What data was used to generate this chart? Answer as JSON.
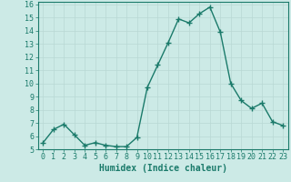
{
  "x": [
    0,
    1,
    2,
    3,
    4,
    5,
    6,
    7,
    8,
    9,
    10,
    11,
    12,
    13,
    14,
    15,
    16,
    17,
    18,
    19,
    20,
    21,
    22,
    23
  ],
  "y": [
    5.5,
    6.5,
    6.9,
    6.1,
    5.3,
    5.5,
    5.3,
    5.2,
    5.2,
    5.9,
    9.7,
    11.4,
    13.1,
    14.9,
    14.6,
    15.3,
    15.8,
    13.9,
    10.0,
    8.7,
    8.1,
    8.5,
    7.1,
    6.8
  ],
  "line_color": "#1a7a6a",
  "marker": "+",
  "marker_size": 4,
  "bg_color": "#cceae6",
  "grid_color": "#b8d8d4",
  "xlabel": "Humidex (Indice chaleur)",
  "xlim": [
    -0.5,
    23.5
  ],
  "ylim": [
    5,
    16.2
  ],
  "yticks": [
    5,
    6,
    7,
    8,
    9,
    10,
    11,
    12,
    13,
    14,
    15,
    16
  ],
  "xticks": [
    0,
    1,
    2,
    3,
    4,
    5,
    6,
    7,
    8,
    9,
    10,
    11,
    12,
    13,
    14,
    15,
    16,
    17,
    18,
    19,
    20,
    21,
    22,
    23
  ],
  "tick_color": "#1a7a6a",
  "label_color": "#1a7a6a",
  "axis_color": "#1a7a6a",
  "xlabel_fontsize": 7,
  "tick_fontsize": 6,
  "linewidth": 1.0,
  "grid_linewidth": 0.5
}
